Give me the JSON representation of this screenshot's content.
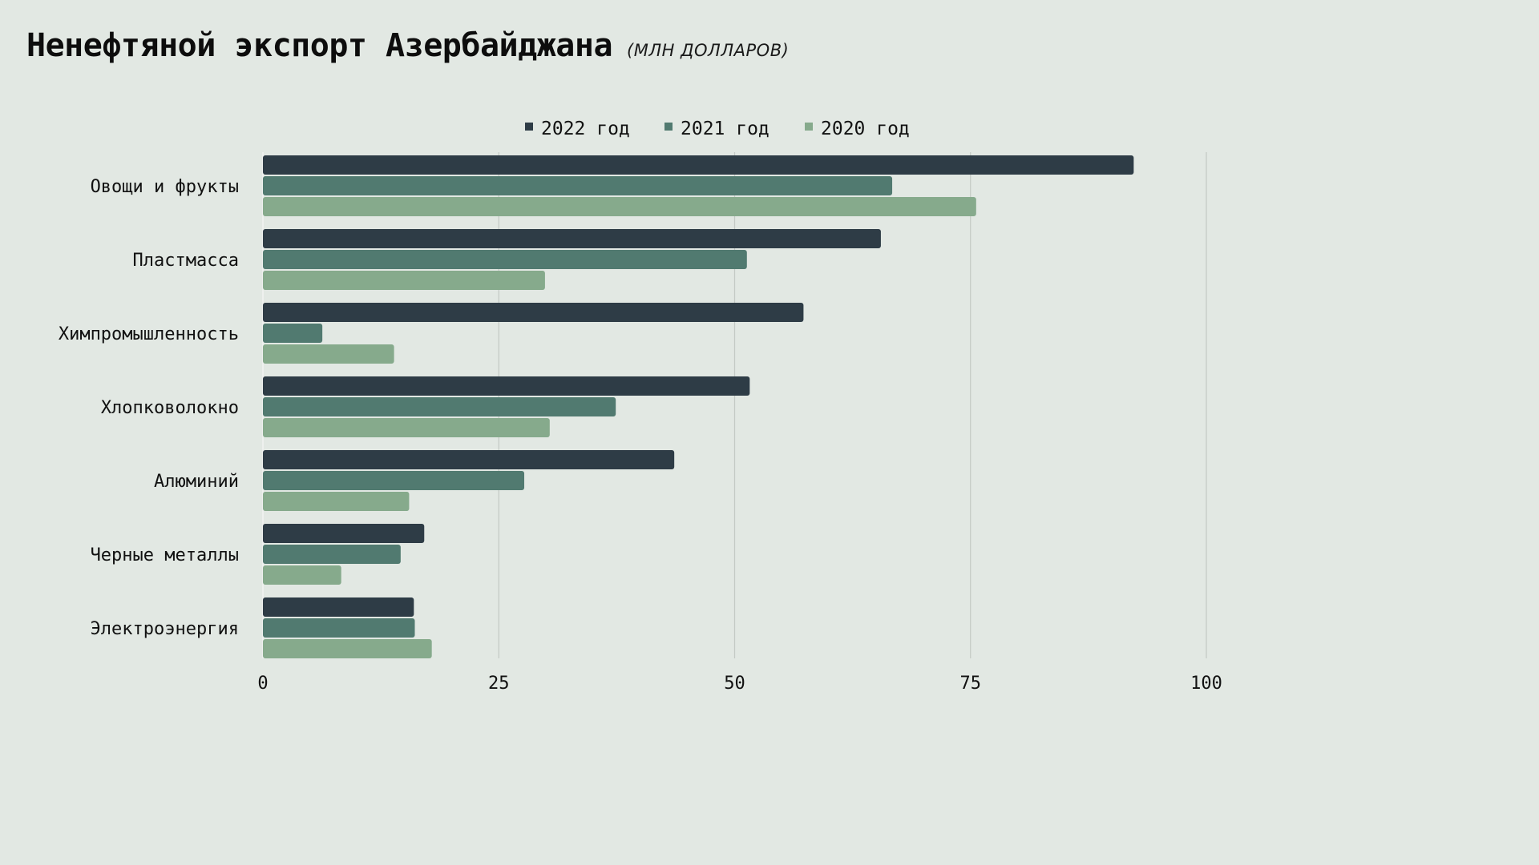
{
  "title": "Ненефтяной экспорт Азербайджана",
  "subtitle": "(МЛН ДОЛЛАРОВ)",
  "colors": {
    "background": "#e2e8e3",
    "grid": "#c3c9c4",
    "series_2022": "#2e3c46",
    "series_2021": "#517a70",
    "series_2020": "#86aa8c"
  },
  "chart_data": {
    "type": "bar",
    "orientation": "horizontal",
    "categories": [
      "Овощи и фрукты",
      "Пластмасса",
      "Химпромышленность",
      "Хлопковолокно",
      "Алюминий",
      "Черные металлы",
      "Электроэнергия"
    ],
    "series": [
      {
        "name": "2022 год",
        "color": "#2e3c46",
        "values": [
          92.3,
          65.5,
          57.3,
          51.6,
          43.6,
          17.1,
          16.0
        ]
      },
      {
        "name": "2021 год",
        "color": "#517a70",
        "values": [
          66.7,
          51.3,
          6.3,
          37.4,
          27.7,
          14.6,
          16.1
        ]
      },
      {
        "name": "2020 год",
        "color": "#86aa8c",
        "values": [
          75.6,
          29.9,
          13.9,
          30.4,
          15.5,
          8.3,
          17.9
        ]
      }
    ],
    "xlim": [
      0,
      100
    ],
    "xticks": [
      0,
      25,
      50,
      75,
      100
    ],
    "grid": true,
    "legend_position": "top"
  }
}
